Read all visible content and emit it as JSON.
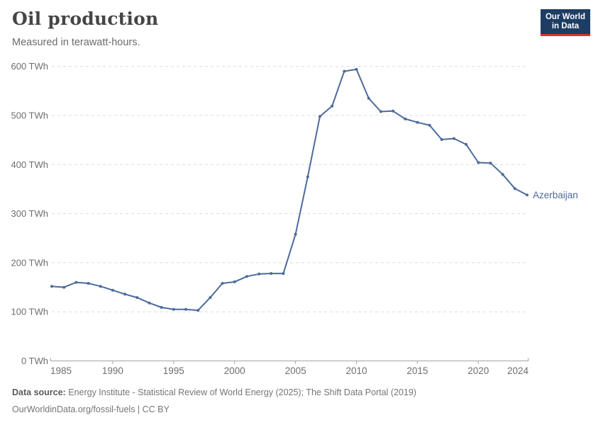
{
  "header": {
    "title": "Oil production",
    "subtitle": "Measured in terawatt-hours.",
    "logo": {
      "line1": "Our World",
      "line2": "in Data"
    }
  },
  "footer": {
    "source_label": "Data source:",
    "source_text": " Energy Institute - Statistical Review of World Energy (2025); The Shift Data Portal (2019)",
    "link": "OurWorldinData.org/fossil-fuels",
    "separator": " | ",
    "license": "CC BY"
  },
  "chart_data": {
    "type": "line",
    "title": "Oil production",
    "subtitle": "Measured in terawatt-hours.",
    "x": [
      1985,
      1986,
      1987,
      1988,
      1989,
      1990,
      1991,
      1992,
      1993,
      1994,
      1995,
      1996,
      1997,
      1998,
      1999,
      2000,
      2001,
      2002,
      2003,
      2004,
      2005,
      2006,
      2007,
      2008,
      2009,
      2010,
      2011,
      2012,
      2013,
      2014,
      2015,
      2016,
      2017,
      2018,
      2019,
      2020,
      2021,
      2022,
      2023,
      2024
    ],
    "series": [
      {
        "name": "Azerbaijan",
        "color": "#4C6A9C",
        "values": [
          152,
          150,
          160,
          158,
          152,
          144,
          136,
          129,
          118,
          109,
          105,
          105,
          103,
          129,
          158,
          161,
          172,
          177,
          178,
          178,
          258,
          375,
          498,
          519,
          590,
          594,
          535,
          508,
          509,
          493,
          486,
          480,
          451,
          453,
          441,
          404,
          403,
          380,
          351,
          338
        ]
      }
    ],
    "xlabel": "",
    "ylabel": "",
    "xlim": [
      1985,
      2024
    ],
    "ylim": [
      0,
      600
    ],
    "x_ticks": [
      1985,
      1990,
      1995,
      2000,
      2005,
      2010,
      2015,
      2020,
      2024
    ],
    "y_ticks": [
      0,
      100,
      200,
      300,
      400,
      500,
      600
    ],
    "y_tick_suffix": " TWh",
    "grid": "dashed-horizontal",
    "legend_position": "end-of-line-label",
    "end_label": "Azerbaijan"
  },
  "colors": {
    "line": "#4C6A9C",
    "grid": "#dcdcdc",
    "axis": "#a5a5a5",
    "tick_text": "#6e6e6e",
    "logo_bg": "#1d3d63",
    "logo_red": "#d6342c"
  }
}
